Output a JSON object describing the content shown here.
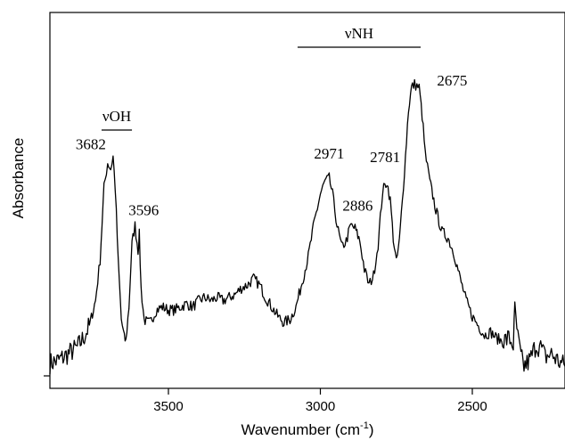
{
  "chart_data": {
    "type": "line",
    "xlabel": "Wavenumber (cm",
    "xlabel_sup": "-1",
    "xlabel_close": ")",
    "ylabel": "Absorbance",
    "xlim": [
      3890,
      2195
    ],
    "x_reversed": true,
    "xticks": [
      3500,
      3000,
      2500
    ],
    "ylim": [
      0,
      1
    ],
    "y_tick_labels_shown": false,
    "grid": false,
    "legend": "none",
    "series": [
      {
        "x": [
          3890,
          3860,
          3830,
          3800,
          3780,
          3760,
          3740,
          3725,
          3712,
          3700,
          3690,
          3682,
          3675,
          3665,
          3655,
          3645,
          3640,
          3630,
          3620,
          3610,
          3600,
          3596,
          3590,
          3580,
          3570,
          3560,
          3550,
          3540,
          3520,
          3500,
          3480,
          3460,
          3440,
          3420,
          3400,
          3380,
          3360,
          3340,
          3320,
          3300,
          3280,
          3260,
          3240,
          3220,
          3200,
          3180,
          3160,
          3140,
          3120,
          3100,
          3080,
          3060,
          3040,
          3020,
          3000,
          2985,
          2971,
          2960,
          2945,
          2930,
          2915,
          2900,
          2886,
          2870,
          2855,
          2840,
          2825,
          2810,
          2795,
          2781,
          2770,
          2760,
          2750,
          2740,
          2730,
          2720,
          2710,
          2700,
          2690,
          2675,
          2665,
          2655,
          2640,
          2620,
          2600,
          2580,
          2560,
          2540,
          2520,
          2500,
          2480,
          2460,
          2440,
          2420,
          2400,
          2380,
          2365,
          2360,
          2350,
          2340,
          2330,
          2310,
          2290,
          2275,
          2260,
          2240,
          2220,
          2195
        ],
        "y": [
          0.04,
          0.05,
          0.07,
          0.09,
          0.12,
          0.16,
          0.24,
          0.37,
          0.6,
          0.68,
          0.66,
          0.7,
          0.6,
          0.36,
          0.18,
          0.12,
          0.11,
          0.22,
          0.42,
          0.48,
          0.4,
          0.45,
          0.28,
          0.18,
          0.17,
          0.17,
          0.19,
          0.21,
          0.22,
          0.21,
          0.21,
          0.22,
          0.23,
          0.22,
          0.24,
          0.25,
          0.24,
          0.25,
          0.24,
          0.25,
          0.26,
          0.28,
          0.29,
          0.31,
          0.29,
          0.25,
          0.22,
          0.19,
          0.17,
          0.18,
          0.22,
          0.3,
          0.38,
          0.49,
          0.58,
          0.62,
          0.63,
          0.58,
          0.48,
          0.41,
          0.43,
          0.48,
          0.47,
          0.43,
          0.34,
          0.29,
          0.32,
          0.42,
          0.59,
          0.62,
          0.56,
          0.44,
          0.36,
          0.43,
          0.56,
          0.7,
          0.85,
          0.92,
          0.93,
          0.92,
          0.83,
          0.71,
          0.62,
          0.53,
          0.46,
          0.44,
          0.39,
          0.31,
          0.24,
          0.19,
          0.16,
          0.13,
          0.14,
          0.12,
          0.11,
          0.12,
          0.1,
          0.21,
          0.12,
          0.06,
          0.03,
          0.05,
          0.1,
          0.09,
          0.06,
          0.07,
          0.05,
          0.03
        ]
      }
    ],
    "annotations": {
      "peaks": [
        {
          "label": "3682",
          "x": 3682,
          "y": 0.7
        },
        {
          "label": "3596",
          "x": 3596,
          "y": 0.45
        },
        {
          "label": "2971",
          "x": 2971,
          "y": 0.63
        },
        {
          "label": "2886",
          "x": 2886,
          "y": 0.47
        },
        {
          "label": "2781",
          "x": 2781,
          "y": 0.62
        },
        {
          "label": "2675",
          "x": 2675,
          "y": 0.92
        }
      ],
      "brackets": [
        {
          "label": "νOH",
          "x_start": 3720,
          "x_end": 3620
        },
        {
          "label": "νNH",
          "x_start": 3075,
          "x_end": 2670
        }
      ]
    }
  }
}
